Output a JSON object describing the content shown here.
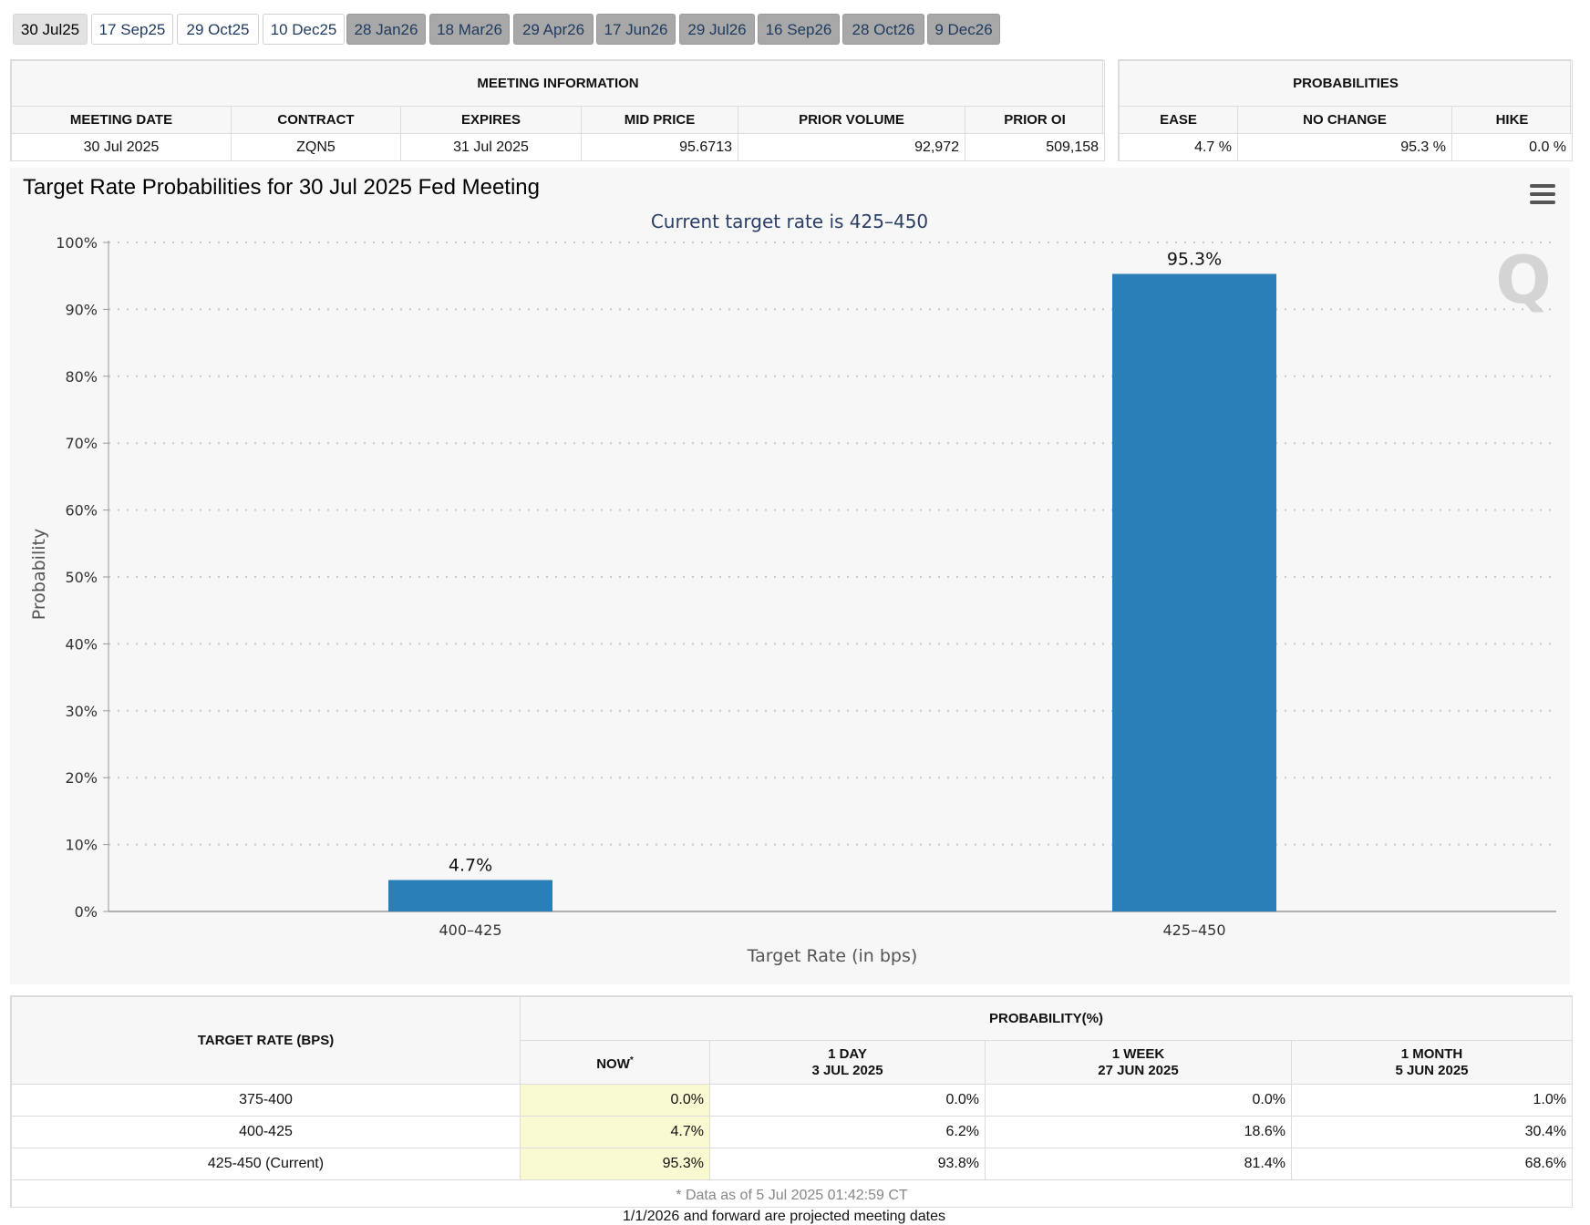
{
  "tabs": [
    {
      "label": "30 Jul25",
      "state": "active"
    },
    {
      "label": "17 Sep25",
      "state": "future"
    },
    {
      "label": "29 Oct25",
      "state": "future"
    },
    {
      "label": "10 Dec25",
      "state": "future"
    },
    {
      "label": "28 Jan26",
      "state": "projected"
    },
    {
      "label": "18 Mar26",
      "state": "projected"
    },
    {
      "label": "29 Apr26",
      "state": "projected"
    },
    {
      "label": "17 Jun26",
      "state": "projected"
    },
    {
      "label": "29 Jul26",
      "state": "projected"
    },
    {
      "label": "16 Sep26",
      "state": "projected"
    },
    {
      "label": "28 Oct26",
      "state": "projected"
    },
    {
      "label": "9 Dec26",
      "state": "projected"
    }
  ],
  "meeting_info": {
    "title": "MEETING INFORMATION",
    "headers": [
      "MEETING DATE",
      "CONTRACT",
      "EXPIRES",
      "MID PRICE",
      "PRIOR VOLUME",
      "PRIOR OI"
    ],
    "values": [
      "30 Jul 2025",
      "ZQN5",
      "31 Jul 2025",
      "95.6713",
      "92,972",
      "509,158"
    ]
  },
  "probabilities": {
    "title": "PROBABILITIES",
    "headers": [
      "EASE",
      "NO CHANGE",
      "HIKE"
    ],
    "values": [
      "4.7 %",
      "95.3 %",
      "0.0 %"
    ]
  },
  "chart": {
    "title": "Target Rate Probabilities for 30 Jul 2025 Fed Meeting",
    "watermark": "Q",
    "bar_color": "#2a7fb8"
  },
  "chart_data": {
    "type": "bar",
    "title": "Target Rate Probabilities for 30 Jul 2025 Fed Meeting",
    "subtitle": "Current target rate is 425–450",
    "categories": [
      "400–425",
      "425–450"
    ],
    "values": [
      4.7,
      95.3
    ],
    "data_labels": [
      "4.7%",
      "95.3%"
    ],
    "xlabel": "Target Rate (in bps)",
    "ylabel": "Probability",
    "ylim": [
      0,
      100
    ],
    "yticks": [
      "0%",
      "10%",
      "20%",
      "30%",
      "40%",
      "50%",
      "60%",
      "70%",
      "80%",
      "90%",
      "100%"
    ],
    "grid": true,
    "legend": "none"
  },
  "history": {
    "col_rate": "TARGET RATE (BPS)",
    "col_prob": "PROBABILITY(%)",
    "col_now": "NOW",
    "now_mark": "*",
    "col_day": "1 DAY",
    "col_day_date": "3 JUL 2025",
    "col_week": "1 WEEK",
    "col_week_date": "27 JUN 2025",
    "col_month": "1 MONTH",
    "col_month_date": "5 JUN 2025",
    "rows": [
      {
        "rate": "375-400",
        "now": "0.0%",
        "day": "0.0%",
        "week": "0.0%",
        "month": "1.0%"
      },
      {
        "rate": "400-425",
        "now": "4.7%",
        "day": "6.2%",
        "week": "18.6%",
        "month": "30.4%"
      },
      {
        "rate": "425-450 (Current)",
        "now": "95.3%",
        "day": "93.8%",
        "week": "81.4%",
        "month": "68.6%"
      }
    ],
    "note": "* Data as of 5 Jul 2025 01:42:59 CT"
  },
  "footer_note": "1/1/2026 and forward are projected meeting dates"
}
